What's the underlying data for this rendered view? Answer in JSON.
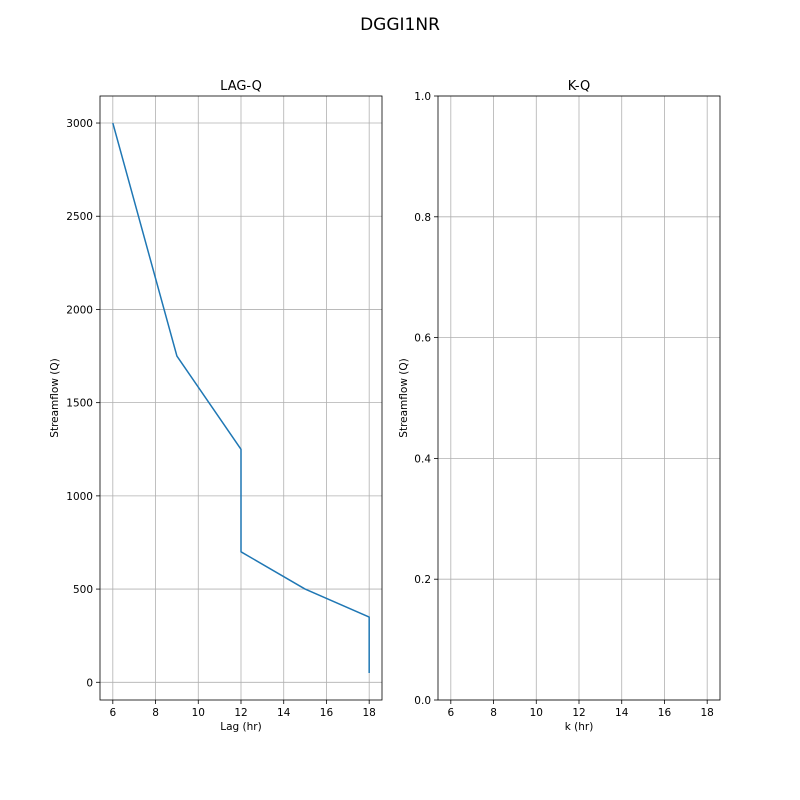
{
  "title": "DGGI1NR",
  "colors": {
    "line": "#1f77b4",
    "grid": "#b0b0b0"
  },
  "chart_data": [
    {
      "type": "line",
      "title": "LAG-Q",
      "xlabel": "Lag (hr)",
      "ylabel": "Streamflow (Q)",
      "xlim": [
        5.4,
        18.6
      ],
      "ylim": [
        -95,
        3145
      ],
      "xticks": [
        6,
        8,
        10,
        12,
        14,
        16,
        18
      ],
      "yticks": [
        0,
        500,
        1000,
        1500,
        2000,
        2500,
        3000
      ],
      "grid": true,
      "series": [
        {
          "name": "LAG-Q",
          "x": [
            6,
            9,
            12,
            12,
            15,
            18,
            18
          ],
          "y": [
            3000,
            1750,
            1250,
            700,
            500,
            350,
            50
          ]
        }
      ]
    },
    {
      "type": "line",
      "title": "K-Q",
      "xlabel": "k (hr)",
      "ylabel": "Streamflow (Q)",
      "xlim": [
        5.4,
        18.6
      ],
      "ylim": [
        0.0,
        1.0
      ],
      "xticks": [
        6,
        8,
        10,
        12,
        14,
        16,
        18
      ],
      "yticks": [
        "0.0",
        "0.2",
        "0.4",
        "0.6",
        "0.8",
        "1.0"
      ],
      "grid": true,
      "series": []
    }
  ]
}
